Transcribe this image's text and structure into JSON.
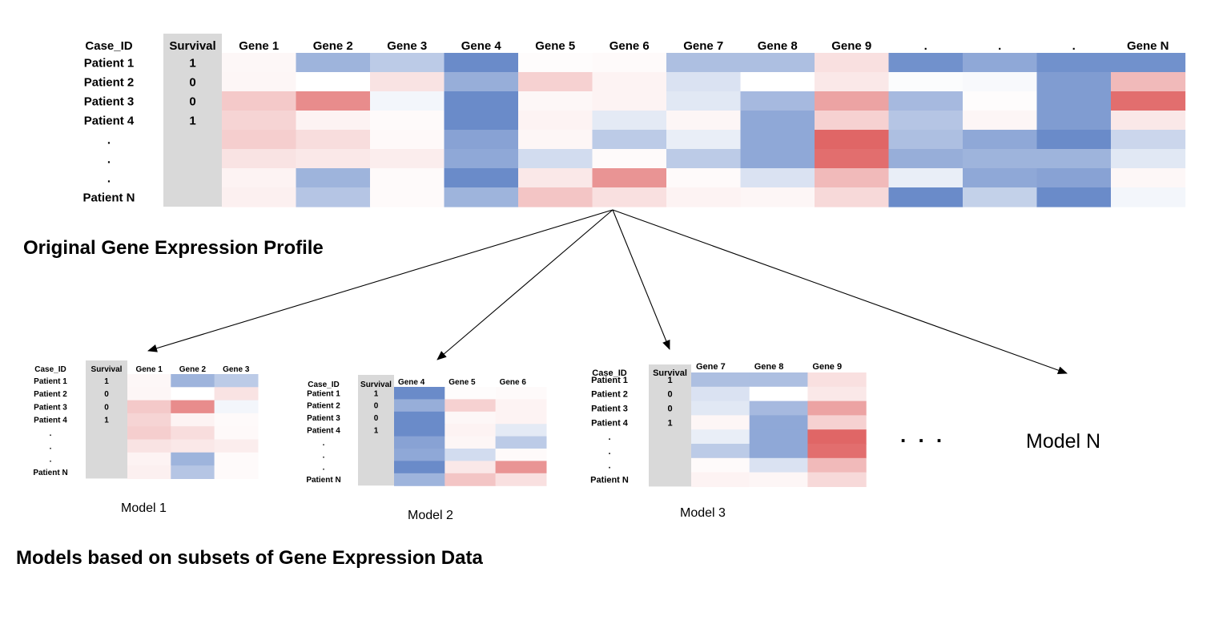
{
  "palette": {
    "survival_column": "#d9d9d9",
    "high_expression": "#e06666",
    "low_expression": "#6a8bc9",
    "neutral": "#ffffff",
    "arrow": "#000000"
  },
  "heat_scale_note": "values are relative expression levels from -1 (blue, low) to +1 (red, high)",
  "original": {
    "title": "Original Gene Expression Profile",
    "case_header": "Case_ID",
    "survival_header": "Survival",
    "gene_headers": [
      "Gene 1",
      "Gene 2",
      "Gene 3",
      "Gene 4",
      "Gene 5",
      "Gene 6",
      "Gene 7",
      "Gene 8",
      "Gene 9",
      ".",
      ".",
      ".",
      "Gene N"
    ],
    "patients": [
      "Patient 1",
      "Patient 2",
      "Patient 3",
      "Patient 4",
      ".",
      ".",
      ".",
      "Patient N"
    ],
    "survival": [
      "1",
      "0",
      "0",
      "1",
      "",
      "",
      "",
      ""
    ],
    "expression": [
      [
        0.05,
        -0.65,
        -0.45,
        -1.0,
        0.02,
        0.03,
        -0.55,
        -0.55,
        0.2,
        -0.95,
        -0.75,
        -0.95,
        -0.95
      ],
      [
        0.06,
        0.0,
        0.18,
        -0.7,
        0.3,
        0.08,
        -0.25,
        0.0,
        0.15,
        -0.03,
        -0.05,
        -0.85,
        0.45
      ],
      [
        0.35,
        0.75,
        -0.08,
        -1.0,
        0.05,
        0.08,
        -0.2,
        -0.6,
        0.6,
        -0.6,
        0.02,
        -0.85,
        0.95
      ],
      [
        0.28,
        0.08,
        0.03,
        -1.0,
        0.08,
        -0.18,
        0.06,
        -0.75,
        0.3,
        -0.5,
        0.06,
        -0.85,
        0.15
      ],
      [
        0.32,
        0.22,
        0.04,
        -0.8,
        0.06,
        -0.45,
        -0.15,
        -0.75,
        1.0,
        -0.55,
        -0.75,
        -1.0,
        -0.35
      ],
      [
        0.18,
        0.15,
        0.12,
        -0.75,
        -0.3,
        0.03,
        -0.45,
        -0.75,
        0.95,
        -0.7,
        -0.65,
        -0.65,
        -0.2
      ],
      [
        0.08,
        -0.65,
        0.03,
        -1.0,
        0.15,
        0.7,
        0.03,
        -0.25,
        0.45,
        -0.15,
        -0.75,
        -0.8,
        0.05
      ],
      [
        0.1,
        -0.5,
        0.03,
        -0.65,
        0.38,
        0.2,
        0.08,
        0.06,
        0.25,
        -1.0,
        -0.4,
        -1.0,
        -0.08
      ]
    ]
  },
  "models_section_title": "Models based on subsets of Gene Expression Data",
  "models": [
    {
      "caption": "Model 1",
      "case_header": "Case_ID",
      "survival_header": "Survival",
      "gene_headers": [
        "Gene 1",
        "Gene 2",
        "Gene 3"
      ],
      "patients": [
        "Patient 1",
        "Patient 2",
        "Patient 3",
        "Patient 4",
        ".",
        ".",
        ".",
        "Patient N"
      ],
      "survival": [
        "1",
        "0",
        "0",
        "1",
        "",
        "",
        "",
        ""
      ],
      "expression": [
        [
          0.05,
          -0.65,
          -0.45
        ],
        [
          0.06,
          0.0,
          0.18
        ],
        [
          0.35,
          0.75,
          -0.08
        ],
        [
          0.28,
          0.08,
          0.03
        ],
        [
          0.32,
          0.22,
          0.04
        ],
        [
          0.18,
          0.15,
          0.12
        ],
        [
          0.08,
          -0.65,
          0.03
        ],
        [
          0.1,
          -0.5,
          0.03
        ]
      ]
    },
    {
      "caption": "Model 2",
      "case_header": "Case_ID",
      "survival_header": "Survival",
      "gene_headers": [
        "Gene 4",
        "Gene 5",
        "Gene 6"
      ],
      "patients": [
        "Patient 1",
        "Patient 2",
        "Patient 3",
        "Patient 4",
        ".",
        ".",
        ".",
        "Patient N"
      ],
      "survival": [
        "1",
        "0",
        "0",
        "1",
        "",
        "",
        "",
        ""
      ],
      "expression": [
        [
          -1.0,
          0.02,
          0.03
        ],
        [
          -0.7,
          0.3,
          0.08
        ],
        [
          -1.0,
          0.05,
          0.08
        ],
        [
          -1.0,
          0.08,
          -0.18
        ],
        [
          -0.8,
          0.06,
          -0.45
        ],
        [
          -0.75,
          -0.3,
          0.03
        ],
        [
          -1.0,
          0.15,
          0.7
        ],
        [
          -0.65,
          0.38,
          0.2
        ]
      ]
    },
    {
      "caption": "Model 3",
      "case_header": "Case_ID",
      "survival_header": "Survival",
      "gene_headers": [
        "Gene 7",
        "Gene 8",
        "Gene 9"
      ],
      "patients": [
        "Patient 1",
        "Patient 2",
        "Patient 3",
        "Patient 4",
        ".",
        ".",
        ".",
        "Patient N"
      ],
      "survival": [
        "1",
        "0",
        "0",
        "1",
        "",
        "",
        "",
        ""
      ],
      "expression": [
        [
          -0.55,
          -0.55,
          0.2
        ],
        [
          -0.25,
          0.0,
          0.15
        ],
        [
          -0.2,
          -0.6,
          0.6
        ],
        [
          0.06,
          -0.75,
          0.3
        ],
        [
          -0.15,
          -0.75,
          1.0
        ],
        [
          -0.45,
          -0.75,
          0.95
        ],
        [
          0.03,
          -0.25,
          0.45
        ],
        [
          0.08,
          0.06,
          0.25
        ]
      ]
    }
  ],
  "ellipsis": ". . .",
  "model_n_label": "Model N"
}
